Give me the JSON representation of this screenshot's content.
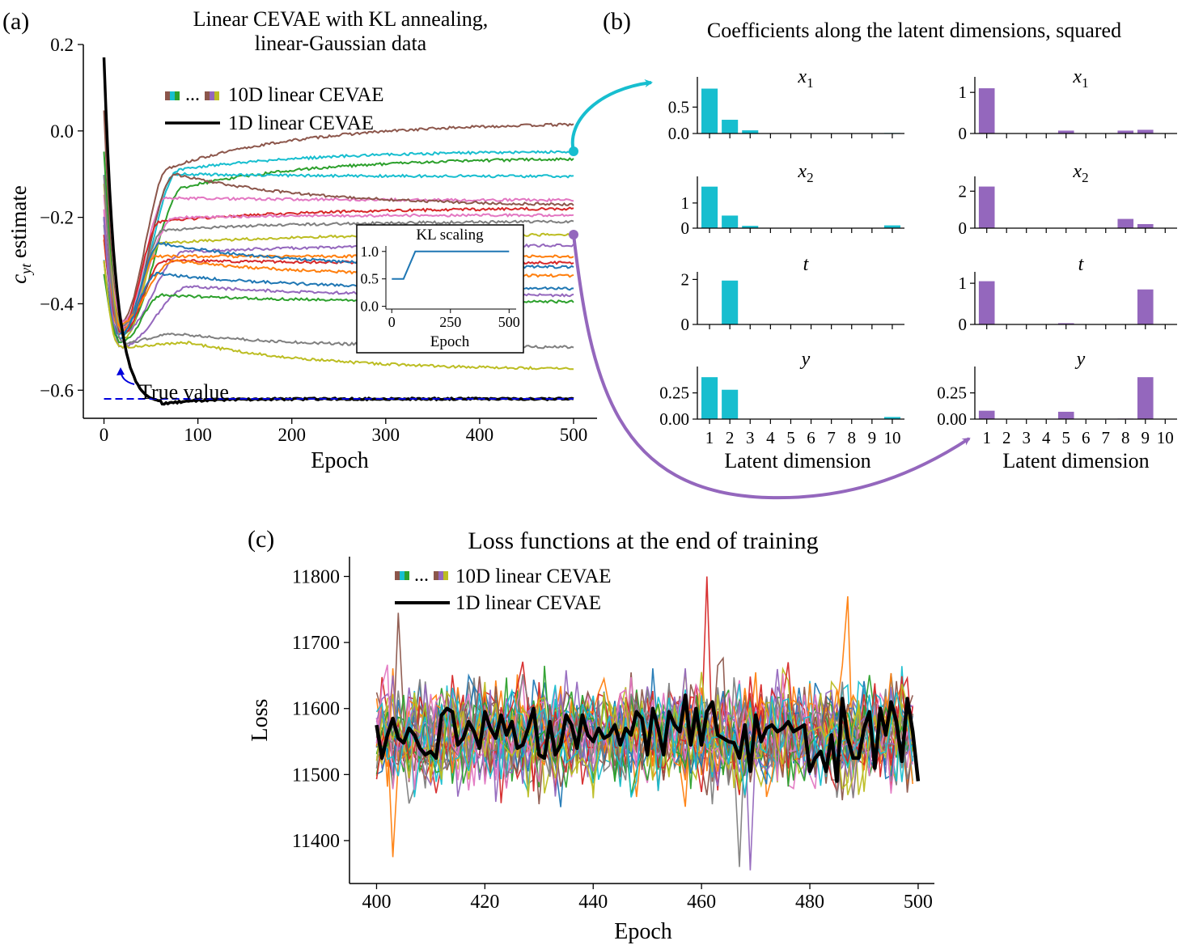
{
  "panel_labels": [
    "(a)",
    "(b)",
    "(c)"
  ],
  "colors": {
    "series": [
      "#1f77b4",
      "#ff7f0e",
      "#2ca02c",
      "#d62728",
      "#9467bd",
      "#8c564b",
      "#e377c2",
      "#7f7f7f",
      "#bcbd22",
      "#17becf"
    ],
    "black": "#000000",
    "true_value": "#0000dd",
    "teal": "#17becf",
    "purple": "#9467bd"
  },
  "chart_data": [
    {
      "id": "a",
      "type": "line",
      "title_line1": "Linear CEVAE with KL annealing,",
      "title_line2": "linear-Gaussian data",
      "xlabel": "Epoch",
      "ylabel_main": "c",
      "ylabel_sub": "yt",
      "ylabel_rest": " estimate",
      "xlim": [
        -22,
        525
      ],
      "ylim": [
        -0.665,
        0.2
      ],
      "xticks": [
        0,
        100,
        200,
        300,
        400,
        500
      ],
      "yticks": [
        0.2,
        0.0,
        -0.2,
        -0.4,
        -0.6
      ],
      "ytick_labels": [
        "0.2",
        "0.0",
        "−0.2",
        "−0.4",
        "−0.6"
      ],
      "legend": [
        "10D linear CEVAE",
        "1D linear CEVAE"
      ],
      "legend_ellipsis": "...",
      "true_value": -0.62,
      "true_value_label": "True value",
      "black_curve": {
        "name": "1D linear CEVAE",
        "start": 0.17,
        "min": -0.632,
        "final": -0.62
      },
      "series": [
        {
          "color": "#8c564b",
          "start": 0.05,
          "dip": -0.44,
          "peak": -0.085,
          "final": 0.015
        },
        {
          "color": "#17becf",
          "start": -0.1,
          "dip": -0.46,
          "peak": -0.09,
          "final": -0.048
        },
        {
          "color": "#2ca02c",
          "start": -0.05,
          "dip": -0.47,
          "peak": -0.13,
          "final": -0.065
        },
        {
          "color": "#17becf",
          "start": -0.2,
          "dip": -0.45,
          "peak": -0.1,
          "final": -0.105
        },
        {
          "color": "#e377c2",
          "start": -0.15,
          "dip": -0.44,
          "peak": -0.155,
          "final": -0.16
        },
        {
          "color": "#8c564b",
          "start": -0.2,
          "dip": -0.45,
          "peak": -0.1,
          "final": -0.17
        },
        {
          "color": "#d62728",
          "start": -0.25,
          "dip": -0.46,
          "peak": -0.21,
          "final": -0.18
        },
        {
          "color": "#e377c2",
          "start": -0.18,
          "dip": -0.46,
          "peak": -0.2,
          "final": -0.195
        },
        {
          "color": "#7f7f7f",
          "start": -0.22,
          "dip": -0.45,
          "peak": -0.23,
          "final": -0.21
        },
        {
          "color": "#bcbd22",
          "start": -0.12,
          "dip": -0.48,
          "peak": -0.26,
          "final": -0.24
        },
        {
          "color": "#9467bd",
          "start": -0.2,
          "dip": -0.47,
          "peak": -0.28,
          "final": -0.265
        },
        {
          "color": "#ff7f0e",
          "start": -0.25,
          "dip": -0.46,
          "peak": -0.29,
          "final": -0.29
        },
        {
          "color": "#d62728",
          "start": -0.24,
          "dip": -0.47,
          "peak": -0.3,
          "final": -0.305
        },
        {
          "color": "#1f77b4",
          "start": -0.2,
          "dip": -0.48,
          "peak": -0.26,
          "final": -0.315
        },
        {
          "color": "#ff7f0e",
          "start": -0.3,
          "dip": -0.45,
          "peak": -0.3,
          "final": -0.335
        },
        {
          "color": "#1f77b4",
          "start": -0.3,
          "dip": -0.47,
          "peak": -0.33,
          "final": -0.365
        },
        {
          "color": "#9467bd",
          "start": -0.2,
          "dip": -0.5,
          "peak": -0.36,
          "final": -0.38
        },
        {
          "color": "#2ca02c",
          "start": -0.33,
          "dip": -0.49,
          "peak": -0.38,
          "final": -0.395
        },
        {
          "color": "#7f7f7f",
          "start": -0.1,
          "dip": -0.49,
          "peak": -0.47,
          "final": -0.5
        },
        {
          "color": "#bcbd22",
          "start": -0.3,
          "dip": -0.5,
          "peak": -0.49,
          "final": -0.55
        }
      ],
      "inset": {
        "title": "KL scaling",
        "xlabel": "Epoch",
        "xticks": [
          0,
          250,
          500
        ],
        "yticks": [
          0.0,
          0.5,
          1.0
        ],
        "ytick_labels": [
          "0.0",
          "0.5",
          "1.0"
        ],
        "xlim": [
          -25,
          530
        ],
        "ylim": [
          -0.05,
          1.1
        ],
        "x": [
          0,
          50,
          100,
          500
        ],
        "y": [
          0.5,
          0.5,
          1.0,
          1.0
        ]
      }
    },
    {
      "id": "b",
      "type": "bar",
      "title": "Coefficients along the latent dimensions, squared",
      "xlabel": "Latent dimension",
      "categories": [
        "1",
        "2",
        "3",
        "4",
        "5",
        "6",
        "7",
        "8",
        "9",
        "10"
      ],
      "rows": [
        "x1",
        "x2",
        "t",
        "y"
      ],
      "row_titles": [
        {
          "main": "x",
          "sub": "1"
        },
        {
          "main": "x",
          "sub": "2"
        },
        {
          "main": "t",
          "sub": ""
        },
        {
          "main": "y",
          "sub": ""
        }
      ],
      "columns": [
        {
          "color": "#17becf",
          "subplots": [
            {
              "values": [
                0.85,
                0.26,
                0.06,
                0,
                0,
                0,
                0,
                0,
                0,
                0.01
              ],
              "ylim": [
                0,
                0.95
              ],
              "yticks": [
                0.0,
                0.5
              ],
              "ytick_labels": [
                "0.0",
                "0.5"
              ]
            },
            {
              "values": [
                1.65,
                0.5,
                0.09,
                0,
                0,
                0,
                0,
                0,
                0,
                0.11
              ],
              "ylim": [
                0,
                1.8
              ],
              "yticks": [
                0,
                1
              ],
              "ytick_labels": [
                "0",
                "1"
              ]
            },
            {
              "values": [
                0,
                1.95,
                0,
                0,
                0,
                0,
                0,
                0,
                0,
                0
              ],
              "ylim": [
                0,
                2.05
              ],
              "yticks": [
                0,
                2
              ],
              "ytick_labels": [
                "0",
                "2"
              ]
            },
            {
              "values": [
                0.4,
                0.28,
                0,
                0,
                0,
                0,
                0,
                0,
                0,
                0.02
              ],
              "ylim": [
                0,
                0.44
              ],
              "yticks": [
                0.0,
                0.25
              ],
              "ytick_labels": [
                "0.00",
                "0.25"
              ]
            }
          ]
        },
        {
          "color": "#9467bd",
          "subplots": [
            {
              "values": [
                1.1,
                0,
                0,
                0,
                0.07,
                0,
                0,
                0.07,
                0.09,
                0
              ],
              "ylim": [
                0,
                1.22
              ],
              "yticks": [
                0,
                1
              ],
              "ytick_labels": [
                "0",
                "1"
              ]
            },
            {
              "values": [
                2.25,
                0,
                0,
                0,
                0,
                0,
                0,
                0.5,
                0.22,
                0
              ],
              "ylim": [
                0,
                2.45
              ],
              "yticks": [
                0,
                2
              ],
              "ytick_labels": [
                "0",
                "2"
              ]
            },
            {
              "values": [
                1.05,
                0,
                0,
                0,
                0.03,
                0,
                0,
                0,
                0.85,
                0
              ],
              "ylim": [
                0,
                1.12
              ],
              "yticks": [
                0,
                1
              ],
              "ytick_labels": [
                "0",
                "1"
              ]
            },
            {
              "values": [
                0.08,
                0,
                0,
                0,
                0.07,
                0,
                0,
                0.005,
                0.4,
                0
              ],
              "ylim": [
                0,
                0.44
              ],
              "yticks": [
                0.0,
                0.25
              ],
              "ytick_labels": [
                "0.00",
                "0.25"
              ]
            }
          ]
        }
      ]
    },
    {
      "id": "c",
      "type": "line",
      "title": "Loss functions at the end of training",
      "xlabel": "Epoch",
      "ylabel": "Loss",
      "xlim": [
        395,
        503
      ],
      "ylim": [
        11335,
        11830
      ],
      "xticks": [
        400,
        420,
        440,
        460,
        480,
        500
      ],
      "yticks": [
        11400,
        11500,
        11600,
        11700,
        11800
      ],
      "legend": [
        "10D linear CEVAE",
        "1D linear CEVAE"
      ],
      "legend_ellipsis": "...",
      "mean_loss": 11560,
      "noise_sd": 55,
      "notable_points": [
        {
          "x": 461,
          "y": 11800,
          "color": "#d62728"
        },
        {
          "x": 487,
          "y": 11770,
          "color": "#ff7f0e"
        },
        {
          "x": 404,
          "y": 11745,
          "color": "#8c564b"
        },
        {
          "x": 467,
          "y": 11360,
          "color": "#7f7f7f"
        },
        {
          "x": 469,
          "y": 11355,
          "color": "#9467bd"
        },
        {
          "x": 403,
          "y": 11375,
          "color": "#ff7f0e"
        }
      ],
      "black_series": {
        "name": "1D linear CEVAE",
        "x_start": 400,
        "values": [
          11575,
          11525,
          11560,
          11585,
          11555,
          11548,
          11570,
          11560,
          11540,
          11530,
          11535,
          11525,
          11590,
          11600,
          11595,
          11545,
          11555,
          11580,
          11565,
          11540,
          11595,
          11570,
          11555,
          11590,
          11560,
          11580,
          11540,
          11545,
          11570,
          11600,
          11530,
          11525,
          11580,
          11530,
          11545,
          11590,
          11575,
          11540,
          11590,
          11560,
          11550,
          11570,
          11555,
          11560,
          11575,
          11545,
          11570,
          11560,
          11595,
          11585,
          11530,
          11600,
          11570,
          11530,
          11595,
          11575,
          11565,
          11620,
          11545,
          11600,
          11545,
          11595,
          11610,
          11560,
          11555,
          11550,
          11548,
          11525,
          11575,
          11505,
          11590,
          11550,
          11570,
          11575,
          11565,
          11570,
          11580,
          11565,
          11570,
          11575,
          11505,
          11525,
          11535,
          11505,
          11560,
          11490,
          11615,
          11555,
          11525,
          11525,
          11570,
          11595,
          11510,
          11600,
          11560,
          11610,
          11580,
          11520,
          11615,
          11565,
          11490
        ]
      }
    }
  ]
}
